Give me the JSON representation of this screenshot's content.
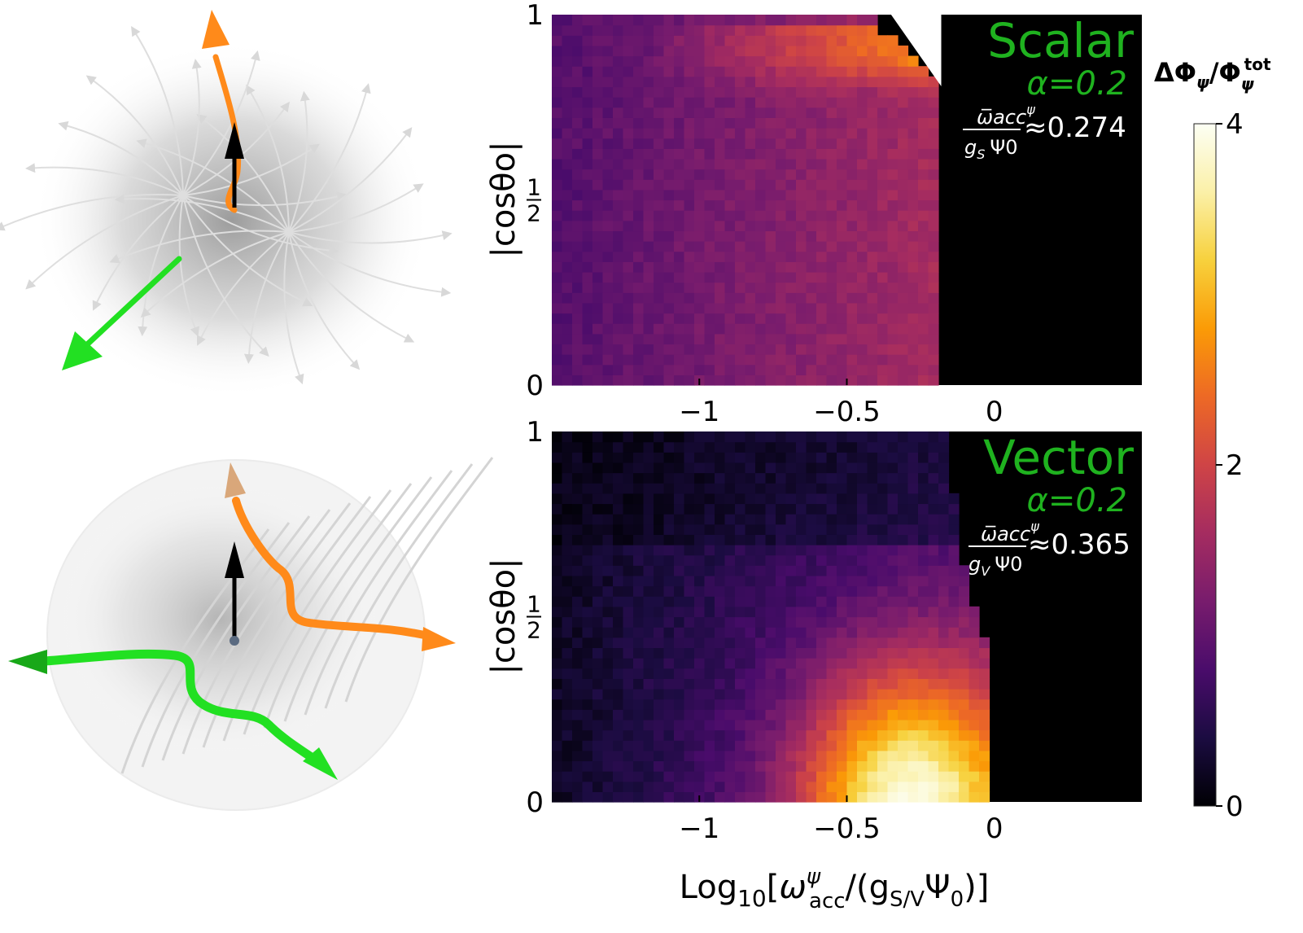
{
  "chart_data": [
    {
      "type": "heatmap",
      "panel": "top",
      "title": "Scalar",
      "alpha": "α=0.2",
      "omega_ratio_lhs": {
        "numerator": "ω̅acc",
        "numerator_sup": "ψ",
        "denominator": "g",
        "denominator_sub": "S",
        "denominator_tail": "Ψ0"
      },
      "omega_ratio_value": "≈0.274",
      "xlabel": "",
      "ylabel": "|cosθo|",
      "xlim": [
        -1.5,
        0.5
      ],
      "ylim": [
        0,
        1
      ],
      "x_ticks": [
        -1,
        -0.5,
        0
      ],
      "x_tick_labels": [
        "−1",
        "−0.5",
        "0"
      ],
      "y_ticks": [
        0,
        0.5,
        1
      ],
      "y_tick_labels": [
        "0",
        "1/2",
        "1"
      ],
      "cutoff_log10": -0.18,
      "colormap": "inferno"
    },
    {
      "type": "heatmap",
      "panel": "bottom",
      "title": "Vector",
      "alpha": "α=0.2",
      "omega_ratio_lhs": {
        "numerator": "ω̅acc",
        "numerator_sup": "ψ",
        "denominator": "g",
        "denominator_sub": "V",
        "denominator_tail": "Ψ0"
      },
      "omega_ratio_value": "≈0.365",
      "xlabel": "Log10[ωψacc/(gS/VΨ0)]",
      "xlabel_parts": {
        "pre": "Log",
        "sub10": "10",
        "open": "[",
        "omega": "ω",
        "omega_sup": "ψ",
        "omega_sub": "acc",
        "mid": "/(g",
        "g_sub": "S/V",
        "psi": "Ψ",
        "psi_sub": "0",
        "close": ")]"
      },
      "ylabel": "|cosθo|",
      "xlim": [
        -1.5,
        0.5
      ],
      "ylim": [
        0,
        1
      ],
      "x_ticks": [
        -1,
        -0.5,
        0
      ],
      "x_tick_labels": [
        "−1",
        "−0.5",
        "0"
      ],
      "y_ticks": [
        0,
        0.5,
        1
      ],
      "y_tick_labels": [
        "0",
        "1/2",
        "1"
      ],
      "cutoff_log10": 0.0,
      "colormap": "inferno"
    }
  ],
  "colorbar": {
    "label_parts": {
      "delta": "ΔΦ",
      "sub": "ψ",
      "slash": "/Φ",
      "sub2": "ψ",
      "sup": "tot"
    },
    "ticks": [
      0,
      2,
      4
    ],
    "tick_labels": [
      "0",
      "2",
      "4"
    ],
    "range": [
      0,
      4
    ],
    "colormap": "inferno"
  },
  "colors": {
    "label_green": "#1fb21f",
    "arrow_orange": "#ff8a1a",
    "arrow_green": "#22e022",
    "arrow_black": "#000000",
    "streamline_gray": "#cfcfcf"
  },
  "illustrations": [
    {
      "name": "scalar-field-illustration",
      "icon": "radial-field-sphere"
    },
    {
      "name": "vector-field-illustration",
      "icon": "directional-field-sphere"
    }
  ]
}
